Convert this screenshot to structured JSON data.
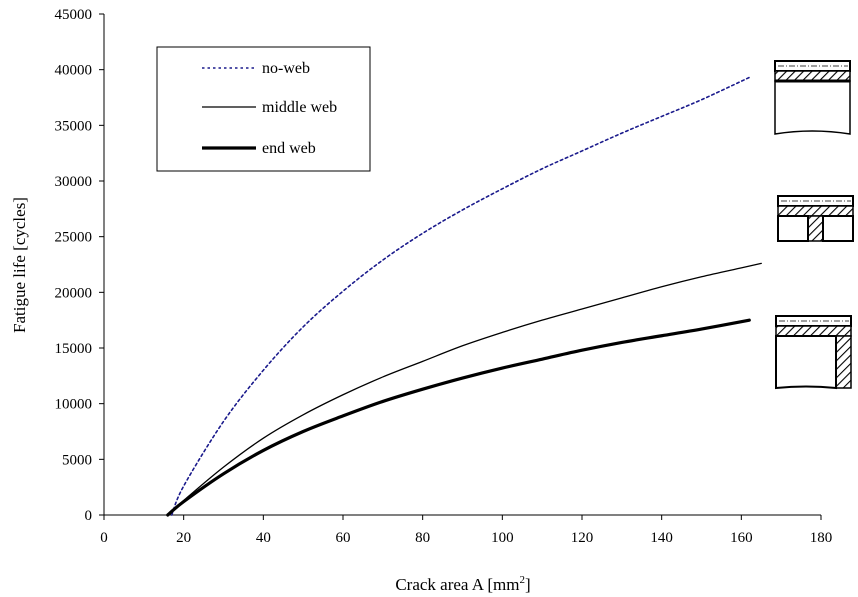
{
  "chart_data": {
    "type": "line",
    "title": "",
    "xlabel": "Crack area A [mm",
    "xlabel_sup": "2",
    "xlabel_tail": "]",
    "ylabel": "Fatigue life [cycles]",
    "xlim": [
      0,
      180
    ],
    "ylim": [
      0,
      45000
    ],
    "x_ticks": [
      0,
      20,
      40,
      60,
      80,
      100,
      120,
      140,
      160,
      180
    ],
    "y_ticks": [
      0,
      5000,
      10000,
      15000,
      20000,
      25000,
      30000,
      35000,
      40000,
      45000
    ],
    "grid": false,
    "legend_position": "top-left",
    "series": [
      {
        "name": "no-web",
        "color": "#1a1a8c",
        "style": "dotted",
        "x": [
          17,
          20,
          30,
          40,
          50,
          60,
          70,
          80,
          90,
          100,
          110,
          120,
          130,
          140,
          150,
          162
        ],
        "y": [
          0,
          2600,
          8400,
          13000,
          16900,
          20100,
          22900,
          25300,
          27400,
          29300,
          31100,
          32700,
          34300,
          35800,
          37300,
          39300
        ]
      },
      {
        "name": "middle web",
        "color": "#000000",
        "style": "solid-thin",
        "x": [
          16,
          20,
          30,
          40,
          50,
          60,
          70,
          80,
          90,
          100,
          110,
          120,
          130,
          140,
          150,
          160,
          165
        ],
        "y": [
          0,
          1300,
          4300,
          6900,
          9000,
          10800,
          12400,
          13800,
          15200,
          16400,
          17500,
          18500,
          19500,
          20500,
          21400,
          22200,
          22600
        ]
      },
      {
        "name": "end web",
        "color": "#000000",
        "style": "solid-thick",
        "x": [
          16,
          20,
          30,
          40,
          50,
          60,
          70,
          80,
          90,
          100,
          110,
          120,
          130,
          140,
          150,
          162
        ],
        "y": [
          0,
          1200,
          3700,
          5800,
          7500,
          8900,
          10200,
          11300,
          12300,
          13200,
          14000,
          14800,
          15500,
          16100,
          16700,
          17500
        ]
      }
    ]
  }
}
